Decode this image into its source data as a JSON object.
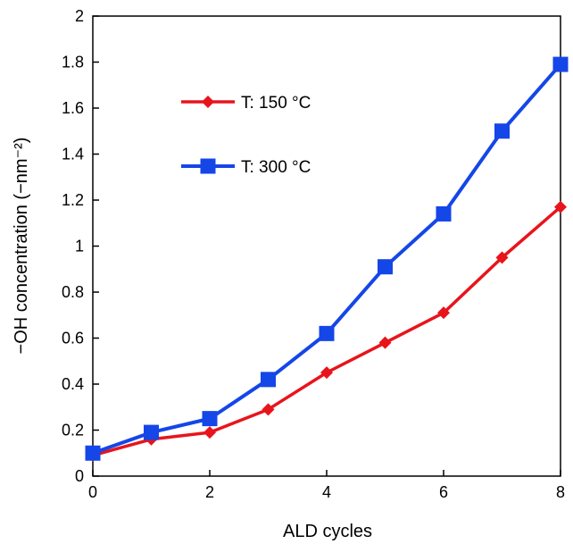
{
  "chart_data": {
    "type": "line",
    "xlabel": "ALD cycles",
    "ylabel": "−OH concentration (−nm⁻²)",
    "xlim": [
      0,
      8
    ],
    "ylim": [
      0,
      2
    ],
    "x_ticks": [
      "0",
      "2",
      "4",
      "6",
      "8"
    ],
    "x_tick_values": [
      0,
      2,
      4,
      6,
      8
    ],
    "y_ticks": [
      "0",
      "0.2",
      "0.4",
      "0.6",
      "0.8",
      "1",
      "1.2",
      "1.4",
      "1.6",
      "1.8",
      "2"
    ],
    "y_tick_values": [
      0,
      0.2,
      0.4,
      0.6,
      0.8,
      1.0,
      1.2,
      1.4,
      1.6,
      1.8,
      2.0
    ],
    "grid": false,
    "legend_position": "top-left",
    "series": [
      {
        "name": "T: 150 °C",
        "marker": "diamond",
        "color": "#e8141c",
        "x": [
          0,
          1,
          2,
          3,
          4,
          5,
          6,
          7,
          8
        ],
        "y": [
          0.09,
          0.16,
          0.19,
          0.29,
          0.45,
          0.58,
          0.71,
          0.95,
          1.17
        ]
      },
      {
        "name": "T: 300 °C",
        "marker": "square",
        "color": "#1446e8",
        "x": [
          0,
          1,
          2,
          3,
          4,
          5,
          6,
          7,
          8
        ],
        "y": [
          0.1,
          0.19,
          0.25,
          0.42,
          0.62,
          0.91,
          1.14,
          1.5,
          1.79
        ]
      }
    ]
  }
}
